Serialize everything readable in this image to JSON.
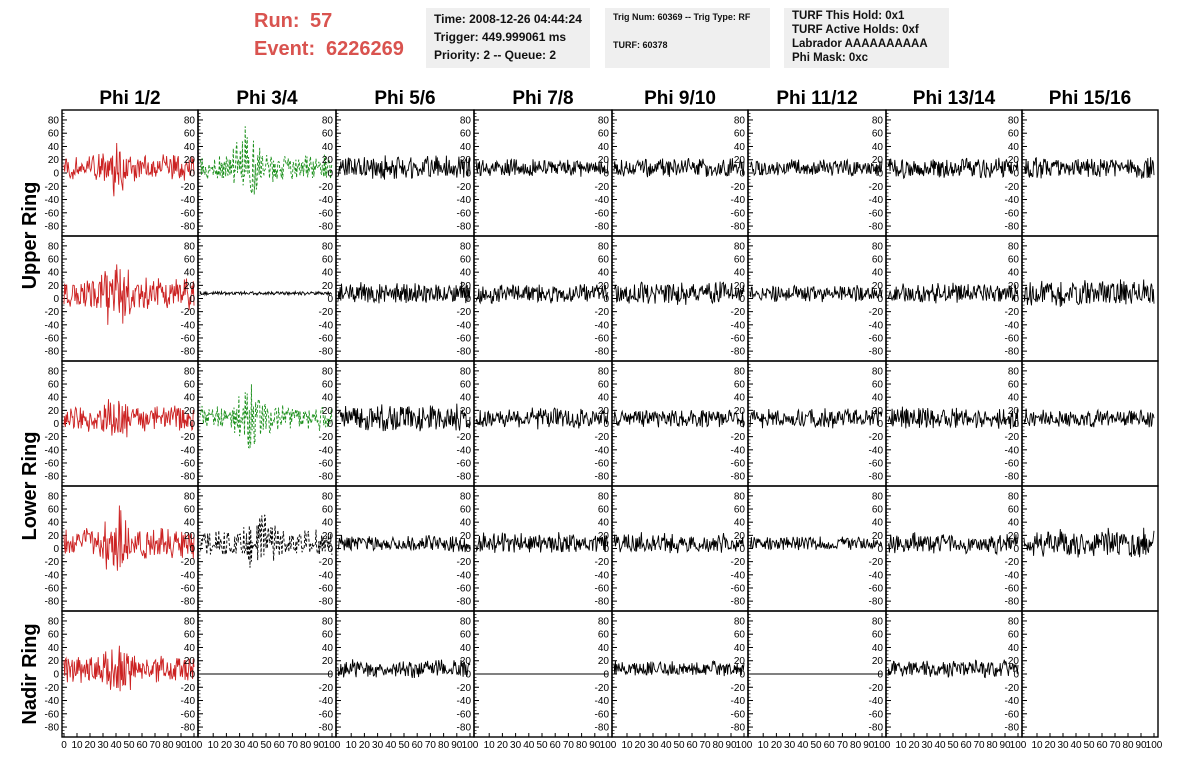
{
  "header": {
    "run_label": "Run:",
    "run_value": "57",
    "event_label": "Event:",
    "event_value": "6226269",
    "time": "Time: 2008-12-26 04:44:24",
    "trigger": "Trigger: 449.999061 ms",
    "priority": "Priority: 2 -- Queue: 2",
    "trig_num": "Trig Num: 60369 -- Trig Type: RF",
    "turf": "TURF: 60378",
    "turf_hold": "TURF This Hold: 0x1",
    "turf_active": "TURF Active Holds: 0xf",
    "labrador": "Labrador AAAAAAAAAA",
    "phi_mask": "Phi Mask: 0xc"
  },
  "colors": {
    "run_text": "#d9534f",
    "red_trace": "#cc2222",
    "green_trace": "#1a8f1a",
    "black_trace": "#000000",
    "info_bg": "#efefef"
  },
  "chart_data": {
    "type": "line",
    "columns": [
      "Phi 1/2",
      "Phi 3/4",
      "Phi 5/6",
      "Phi 7/8",
      "Phi 9/10",
      "Phi 11/12",
      "Phi 13/14",
      "Phi 15/16"
    ],
    "rows": [
      "Upper Ring",
      "Upper Ring",
      "Lower Ring",
      "Lower Ring",
      "Nadir Ring"
    ],
    "row_labels": [
      {
        "label": "Upper Ring",
        "rows": [
          0,
          1
        ]
      },
      {
        "label": "Lower Ring",
        "rows": [
          2,
          3
        ]
      },
      {
        "label": "Nadir Ring",
        "rows": [
          4
        ]
      }
    ],
    "ylim": [
      -95,
      95
    ],
    "yticks": [
      80,
      60,
      40,
      20,
      0,
      -20,
      -40,
      -60,
      -80
    ],
    "xlim": [
      0,
      100
    ],
    "xticks": [
      "0",
      "10",
      "20",
      "30",
      "40",
      "50",
      "60",
      "70",
      "80",
      "90",
      "100"
    ],
    "grid": false,
    "panels": [
      [
        {
          "style": "red",
          "amp": 22,
          "burst": [
            40,
            32
          ]
        },
        {
          "style": "green",
          "amp": 22,
          "burst": [
            35,
            60
          ]
        },
        {
          "style": "black",
          "amp": 20,
          "burst": [
            0,
            0
          ]
        },
        {
          "style": "black",
          "amp": 15,
          "burst": [
            0,
            0
          ]
        },
        {
          "style": "black",
          "amp": 16,
          "burst": [
            0,
            0
          ]
        },
        {
          "style": "black",
          "amp": 14,
          "burst": [
            0,
            0
          ]
        },
        {
          "style": "black",
          "amp": 17,
          "burst": [
            0,
            0
          ]
        },
        {
          "style": "black",
          "amp": 18,
          "burst": [
            0,
            0
          ]
        }
      ],
      [
        {
          "style": "red",
          "amp": 28,
          "burst": [
            40,
            45
          ]
        },
        {
          "style": "black",
          "amp": 3,
          "burst": [
            0,
            0
          ]
        },
        {
          "style": "black",
          "amp": 18,
          "burst": [
            0,
            0
          ]
        },
        {
          "style": "black",
          "amp": 17,
          "burst": [
            0,
            0
          ]
        },
        {
          "style": "black",
          "amp": 19,
          "burst": [
            0,
            0
          ]
        },
        {
          "style": "black",
          "amp": 14,
          "burst": [
            0,
            0
          ]
        },
        {
          "style": "black",
          "amp": 17,
          "burst": [
            0,
            0
          ]
        },
        {
          "style": "black",
          "amp": 22,
          "burst": [
            0,
            0
          ]
        }
      ],
      [
        {
          "style": "red",
          "amp": 22,
          "burst": [
            42,
            25
          ]
        },
        {
          "style": "green",
          "amp": 22,
          "burst": [
            38,
            45
          ]
        },
        {
          "style": "black",
          "amp": 24,
          "burst": [
            0,
            0
          ]
        },
        {
          "style": "black",
          "amp": 17,
          "burst": [
            0,
            0
          ]
        },
        {
          "style": "black",
          "amp": 15,
          "burst": [
            0,
            0
          ]
        },
        {
          "style": "black",
          "amp": 16,
          "burst": [
            0,
            0
          ]
        },
        {
          "style": "black",
          "amp": 18,
          "burst": [
            0,
            0
          ]
        },
        {
          "style": "black",
          "amp": 15,
          "burst": [
            0,
            0
          ]
        }
      ],
      [
        {
          "style": "red",
          "amp": 25,
          "burst": [
            40,
            40
          ]
        },
        {
          "style": "dashed",
          "amp": 22,
          "burst": [
            45,
            40
          ]
        },
        {
          "style": "black",
          "amp": 15,
          "burst": [
            0,
            0
          ]
        },
        {
          "style": "black",
          "amp": 18,
          "burst": [
            0,
            0
          ]
        },
        {
          "style": "black",
          "amp": 17,
          "burst": [
            0,
            0
          ]
        },
        {
          "style": "black",
          "amp": 12,
          "burst": [
            0,
            0
          ]
        },
        {
          "style": "black",
          "amp": 18,
          "burst": [
            0,
            0
          ]
        },
        {
          "style": "black",
          "amp": 24,
          "burst": [
            0,
            0
          ]
        }
      ],
      [
        {
          "style": "red",
          "amp": 22,
          "burst": [
            42,
            35
          ]
        },
        {
          "style": "flat",
          "amp": 0,
          "burst": [
            0,
            0
          ]
        },
        {
          "style": "black",
          "amp": 15,
          "burst": [
            0,
            0
          ]
        },
        {
          "style": "flat",
          "amp": 0,
          "burst": [
            0,
            0
          ]
        },
        {
          "style": "black",
          "amp": 13,
          "burst": [
            0,
            0
          ]
        },
        {
          "style": "flat",
          "amp": 0,
          "burst": [
            0,
            0
          ]
        },
        {
          "style": "black",
          "amp": 14,
          "burst": [
            0,
            0
          ]
        },
        {
          "style": "empty",
          "amp": 0,
          "burst": [
            0,
            0
          ]
        }
      ]
    ]
  }
}
